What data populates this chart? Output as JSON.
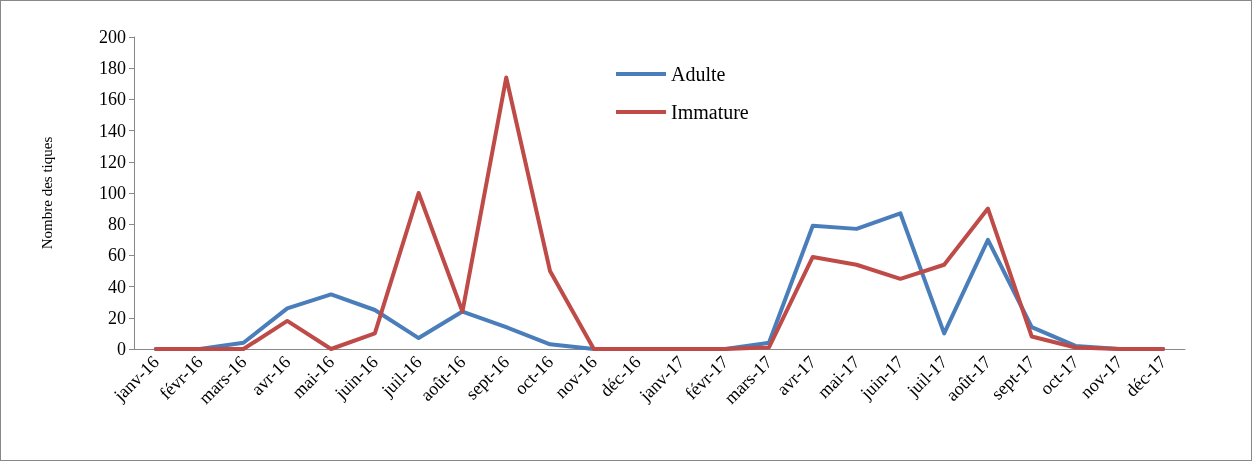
{
  "chart_data": {
    "type": "line",
    "ylabel": "Nombre des tiques",
    "categories": [
      "janv-16",
      "févr-16",
      "mars-16",
      "avr-16",
      "mai-16",
      "juin-16",
      "juil-16",
      "août-16",
      "sept-16",
      "oct-16",
      "nov-16",
      "déc-16",
      "janv-17",
      "févr-17",
      "mars-17",
      "avr-17",
      "mai-17",
      "juin-17",
      "juil-17",
      "août-17",
      "sept-17",
      "oct-17",
      "nov-17",
      "déc-17"
    ],
    "series": [
      {
        "name": "Adulte",
        "color": "#4a7ebb",
        "values": [
          0,
          0,
          4,
          26,
          35,
          25,
          7,
          24,
          14,
          3,
          0,
          0,
          0,
          0,
          4,
          79,
          77,
          87,
          10,
          70,
          14,
          2,
          0,
          0
        ]
      },
      {
        "name": "Immature",
        "color": "#be4b48",
        "values": [
          0,
          0,
          0,
          18,
          0,
          10,
          100,
          24,
          174,
          50,
          0,
          0,
          0,
          0,
          1,
          59,
          54,
          45,
          54,
          90,
          8,
          1,
          0,
          0
        ]
      }
    ],
    "ylim": [
      0,
      200
    ],
    "yticks": [
      0,
      20,
      40,
      60,
      80,
      100,
      120,
      140,
      160,
      180,
      200
    ],
    "grid": false,
    "legend": "top",
    "marker": "none",
    "line_style": "solid"
  }
}
